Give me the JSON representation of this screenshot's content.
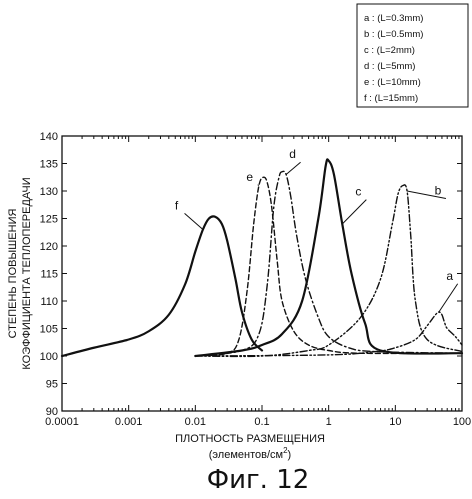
{
  "chart_data": {
    "type": "line",
    "x_scale": "log",
    "xlim": [
      0.0001,
      100
    ],
    "ylim": [
      90,
      140
    ],
    "x_ticks": [
      {
        "value": 0.0001,
        "label": "0.0001"
      },
      {
        "value": 0.001,
        "label": "0.001"
      },
      {
        "value": 0.01,
        "label": "0.01"
      },
      {
        "value": 0.1,
        "label": "0.1"
      },
      {
        "value": 1,
        "label": "1"
      },
      {
        "value": 10,
        "label": "10"
      },
      {
        "value": 100,
        "label": "100"
      }
    ],
    "y_ticks": [
      90,
      95,
      100,
      105,
      110,
      115,
      120,
      125,
      130,
      135,
      140
    ],
    "xlabel_line1": "ПЛОТНОСТЬ РАЗМЕЩЕНИЯ",
    "xlabel_line2": "(элементов/см",
    "xlabel_sup": "2",
    "xlabel_close": ")",
    "ylabel_line1": "СТЕПЕНЬ ПОВЫШЕНИЯ",
    "ylabel_line2": "КОЭФФИЦИЕНТА ТЕПЛОПЕРЕДАЧИ",
    "grid": false,
    "legend_position": "top-right",
    "legend": [
      "a : (L=0.3mm)",
      "b : (L=0.5mm)",
      "c : (L=2mm)",
      "d : (L=5mm)",
      "e : (L=10mm)",
      "f : (L=15mm)"
    ],
    "series": [
      {
        "id": "f",
        "label": "f",
        "style": "solid",
        "width": 2.2,
        "x": [
          0.0001,
          0.0003,
          0.001,
          0.002,
          0.004,
          0.007,
          0.01,
          0.013,
          0.016,
          0.02,
          0.025,
          0.03,
          0.04,
          0.05,
          0.07,
          0.1
        ],
        "y": [
          100,
          101.5,
          103,
          104.5,
          107.5,
          113,
          119,
          123,
          125,
          125.3,
          124,
          121,
          114,
          108,
          103,
          101
        ],
        "label_at": [
          0.006,
          126.3
        ]
      },
      {
        "id": "e",
        "label": "e",
        "style": "dashed",
        "width": 1.4,
        "x": [
          0.01,
          0.03,
          0.045,
          0.06,
          0.075,
          0.09,
          0.105,
          0.12,
          0.14,
          0.17,
          0.2,
          0.3,
          0.5,
          1,
          3,
          100
        ],
        "y": [
          100,
          100.5,
          103,
          112,
          124,
          131,
          132.5,
          131.5,
          127,
          117,
          110,
          104.5,
          102,
          101,
          100.5,
          100.5
        ],
        "label_at": [
          0.075,
          131.5
        ]
      },
      {
        "id": "d",
        "label": "d",
        "style": "dashdot",
        "width": 1.4,
        "x": [
          0.01,
          0.05,
          0.09,
          0.12,
          0.15,
          0.18,
          0.2,
          0.23,
          0.27,
          0.33,
          0.45,
          0.7,
          1,
          2,
          5,
          100
        ],
        "y": [
          100,
          101,
          104,
          113,
          127,
          132.5,
          133.5,
          133,
          129,
          122,
          114,
          107,
          103.5,
          101.5,
          100.8,
          100.5
        ],
        "label_at": [
          0.33,
          135.6
        ]
      },
      {
        "id": "c",
        "label": "c",
        "style": "solid",
        "width": 2.2,
        "x": [
          0.01,
          0.05,
          0.1,
          0.2,
          0.4,
          0.7,
          0.9,
          1,
          1.2,
          1.6,
          2.2,
          3.5,
          6,
          100
        ],
        "y": [
          100,
          101,
          102,
          104,
          110,
          125,
          134.5,
          135.5,
          133,
          124,
          115,
          106,
          101,
          100.5
        ],
        "label_at": [
          3.2,
          128.8
        ]
      },
      {
        "id": "b",
        "label": "b",
        "style": "dashdotdot",
        "width": 1.4,
        "x": [
          0.01,
          0.1,
          0.5,
          1,
          3,
          6,
          9,
          11,
          13,
          15,
          17,
          20,
          30,
          100
        ],
        "y": [
          100,
          100,
          101,
          102,
          107,
          114,
          124,
          129.5,
          131,
          130,
          122,
          110,
          103,
          100.8
        ],
        "label_at": [
          50,
          129
        ]
      },
      {
        "id": "a",
        "label": "a",
        "style": "dashdotdot",
        "width": 1.4,
        "x": [
          0.01,
          1,
          5,
          10,
          20,
          30,
          40,
          45,
          50,
          55,
          60,
          80,
          100
        ],
        "y": [
          100,
          100.2,
          100.8,
          101.5,
          103,
          105.5,
          107.5,
          108,
          107.5,
          106,
          105,
          103.5,
          102
        ],
        "label_at": [
          75,
          113.5
        ]
      }
    ],
    "figure_caption": "Фиг. 12"
  }
}
